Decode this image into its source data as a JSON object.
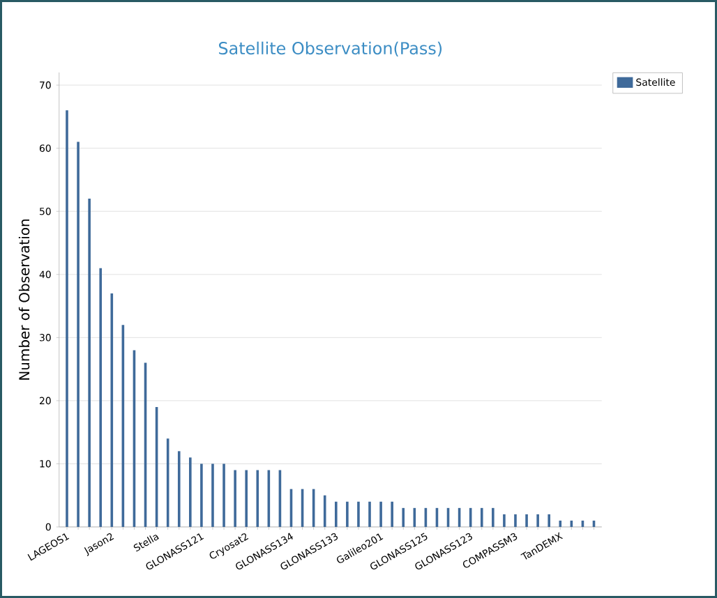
{
  "chart_data": {
    "type": "bar",
    "title": "Satellite Observation(Pass)",
    "ylabel": "Number of Observation",
    "categories": [
      "LAGEOS1",
      null,
      null,
      null,
      "Jason2",
      null,
      null,
      null,
      "Stella",
      null,
      null,
      null,
      "GLONASS121",
      null,
      null,
      null,
      "Cryosat2",
      null,
      null,
      null,
      "GLONASS134",
      null,
      null,
      null,
      "GLONASS133",
      null,
      null,
      null,
      "Galileo201",
      null,
      null,
      null,
      "GLONASS125",
      null,
      null,
      null,
      "GLONASS123",
      null,
      null,
      null,
      "COMPASSM3",
      null,
      null,
      null,
      "TanDEMX",
      null,
      null,
      null
    ],
    "series": [
      {
        "name": "Satellite",
        "color": "#3f6a9a",
        "values": [
          66,
          61,
          52,
          41,
          37,
          32,
          28,
          26,
          19,
          14,
          12,
          11,
          10,
          10,
          10,
          9,
          9,
          9,
          9,
          9,
          6,
          6,
          6,
          5,
          4,
          4,
          4,
          4,
          4,
          4,
          3,
          3,
          3,
          3,
          3,
          3,
          3,
          3,
          3,
          2,
          2,
          2,
          2,
          2,
          1,
          1,
          1,
          1
        ]
      }
    ],
    "ylim": [
      0,
      72
    ],
    "yticks": [
      0,
      10,
      20,
      30,
      40,
      50,
      60,
      70
    ],
    "grid": "y",
    "legend": "top right"
  }
}
